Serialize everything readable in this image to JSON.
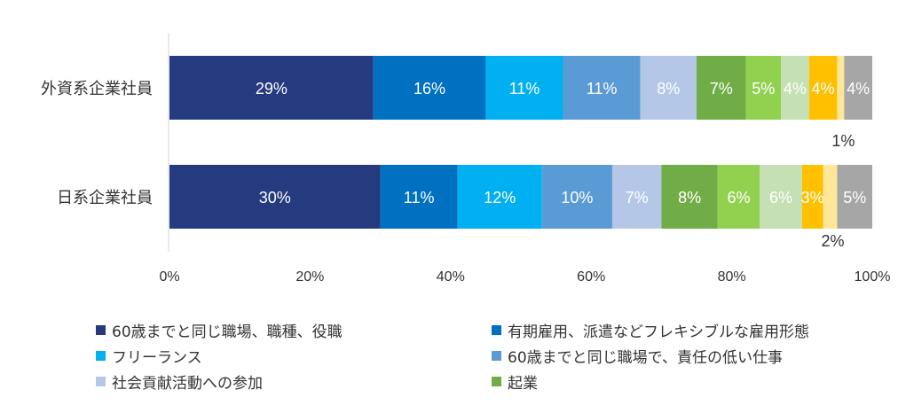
{
  "chart_data": {
    "type": "bar",
    "orientation": "horizontal",
    "stacked": true,
    "categories": [
      "外資系企業社員",
      "日系企業社員"
    ],
    "xlim": [
      0,
      100
    ],
    "x_ticks": [
      "0%",
      "20%",
      "40%",
      "60%",
      "80%",
      "100%"
    ],
    "grid": false,
    "legend_position": "bottom",
    "series": [
      {
        "name": "60歳までと同じ職場、職種、役職",
        "color": "#253a7f",
        "values": [
          29,
          30
        ],
        "labels": [
          "29%",
          "30%"
        ]
      },
      {
        "name": "有期雇用、派遣などフレキシブルな雇用形態",
        "color": "#0070c0",
        "values": [
          16,
          11
        ],
        "labels": [
          "16%",
          "11%"
        ]
      },
      {
        "name": "フリーランス",
        "color": "#00b0f0",
        "values": [
          11,
          12
        ],
        "labels": [
          "11%",
          "12%"
        ]
      },
      {
        "name": "60歳までと同じ職場で、責任の低い仕事",
        "color": "#5b9bd5",
        "values": [
          11,
          10
        ],
        "labels": [
          "11%",
          "10%"
        ]
      },
      {
        "name": "社会貢献活動への参加",
        "color": "#b4c7e7",
        "values": [
          8,
          7
        ],
        "labels": [
          "8%",
          "7%"
        ]
      },
      {
        "name": "起業",
        "color": "#70ad47",
        "values": [
          7,
          8
        ],
        "labels": [
          "7%",
          "8%"
        ]
      },
      {
        "name": "",
        "color": "#92d050",
        "values": [
          5,
          6
        ],
        "labels": [
          "5%",
          "6%"
        ]
      },
      {
        "name": "",
        "color": "#c5e0b4",
        "values": [
          4,
          6
        ],
        "labels": [
          "4%",
          "6%"
        ]
      },
      {
        "name": "",
        "color": "#ffc000",
        "values": [
          4,
          3
        ],
        "labels": [
          "4%",
          "3%"
        ]
      },
      {
        "name": "",
        "color": "#ffe699",
        "values": [
          1,
          2
        ],
        "labels": [
          "1%",
          "2%"
        ]
      },
      {
        "name": "",
        "color": "#a6a6a6",
        "values": [
          4,
          5
        ],
        "labels": [
          "4%",
          "5%"
        ]
      }
    ]
  }
}
